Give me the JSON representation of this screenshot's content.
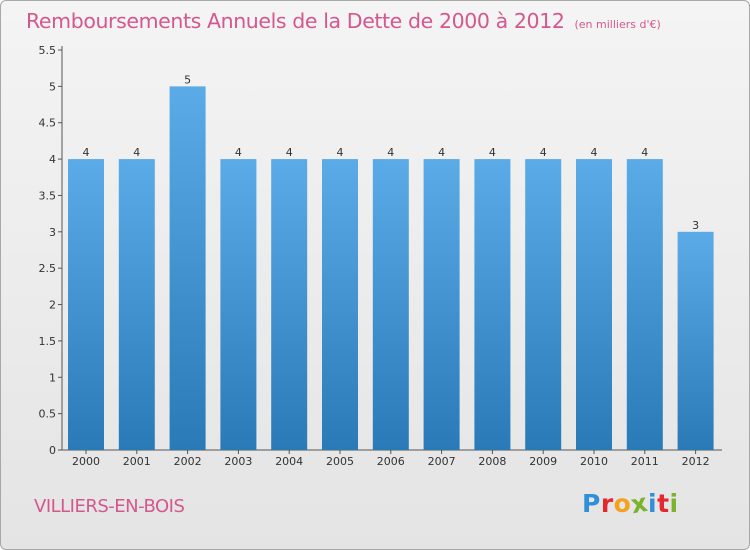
{
  "header": {
    "title": "Remboursements Annuels de la Dette de 2000 à 2012",
    "subtitle": "(en milliers d'€)"
  },
  "footer": {
    "commune": "VILLIERS-EN-BOIS",
    "logo_letters": [
      "P",
      "r",
      "o",
      "x",
      "i",
      "t",
      "i"
    ],
    "logo_colors": [
      "#2f8fd8",
      "#e3282e",
      "#f4a21d",
      "#7ab32e",
      "#2f8fd8",
      "#e3282e",
      "#7ab32e"
    ]
  },
  "colors": {
    "bar_top": "#5aabe7",
    "bar_bottom": "#2a7ab8",
    "title": "#d4578e",
    "axis_text": "#333333"
  },
  "chart_data": {
    "type": "bar",
    "categories": [
      "2000",
      "2001",
      "2002",
      "2003",
      "2004",
      "2005",
      "2006",
      "2007",
      "2008",
      "2009",
      "2010",
      "2011",
      "2012"
    ],
    "values": [
      4,
      4,
      5,
      4,
      4,
      4,
      4,
      4,
      4,
      4,
      4,
      4,
      3
    ],
    "data_labels": [
      "4",
      "4",
      "5",
      "4",
      "4",
      "4",
      "4",
      "4",
      "4",
      "4",
      "4",
      "4",
      "3"
    ],
    "y_ticks": [
      0,
      0.5,
      1,
      1.5,
      2,
      2.5,
      3,
      3.5,
      4,
      4.5,
      5,
      5.5
    ],
    "y_tick_labels": [
      "0",
      "0.5",
      "1",
      "1.5",
      "2",
      "2.5",
      "3",
      "3.5",
      "4",
      "4.5",
      "5",
      "5.5"
    ],
    "ylim": [
      0,
      5.5
    ],
    "title": "Remboursements Annuels de la Dette de 2000 à 2012",
    "xlabel": "",
    "ylabel": "",
    "grid": false,
    "legend": "none"
  }
}
